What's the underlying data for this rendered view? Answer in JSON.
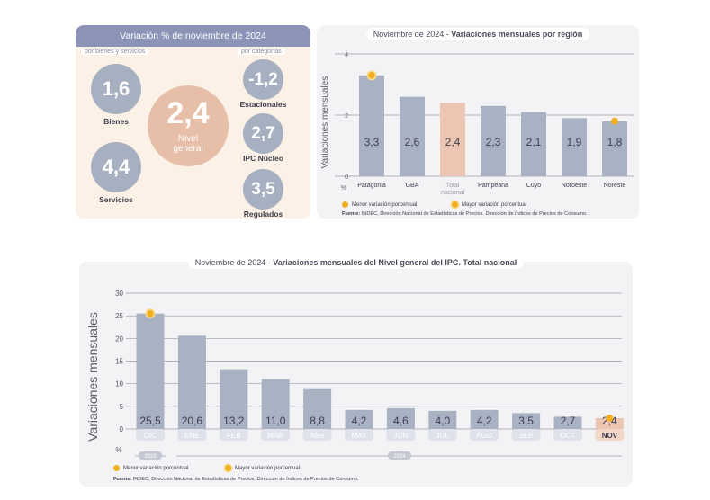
{
  "summary": {
    "title": "Variación % de noviembre de 2024",
    "sub_left": "por bienes y servicios",
    "sub_right": "por categorías",
    "bienes": {
      "value": "1,6",
      "label": "Bienes"
    },
    "servicios": {
      "value": "4,4",
      "label": "Servicios"
    },
    "general": {
      "value": "2,4",
      "label1": "Nivel",
      "label2": "general"
    },
    "estacionales": {
      "value": "-1,2",
      "label": "Estacionales"
    },
    "nucleo": {
      "value": "2,7",
      "label": "IPC Núcleo"
    },
    "regulados": {
      "value": "3,5",
      "label": "Regulados"
    },
    "colors": {
      "circle": "#a7b0c1",
      "general": "#e7bfa8",
      "header": "#8b93b6"
    }
  },
  "legend": {
    "menor": "Menor variación porcentual",
    "mayor": "Mayor variación porcentual"
  },
  "fuente": {
    "bold": "Fuente:",
    "text": " INDEC, Dirección Nacional de Estadísticas de Precios. Dirección de Índices de Precios de Consumo."
  },
  "chart_data": [
    {
      "type": "bar",
      "title_prefix": "Noviembre de 2024 - ",
      "title": "Variaciones mensuales por región",
      "ylabel": "Variaciones mensuales",
      "unit": "%",
      "ylim": [
        0,
        4
      ],
      "yticks": [
        0,
        2,
        4
      ],
      "categories": [
        "Patagonia",
        "GBA",
        "Total nacional",
        "Pampeana",
        "Cuyo",
        "Noroeste",
        "Noreste"
      ],
      "values": [
        3.3,
        2.6,
        2.4,
        2.3,
        2.1,
        1.9,
        1.8
      ],
      "value_labels": [
        "3,3",
        "2,6",
        "2,4",
        "2,3",
        "2,1",
        "1,9",
        "1,8"
      ],
      "highlight_index": 2,
      "max_index": 0,
      "min_index": 6,
      "bar_color": "#a9b2c3",
      "highlight_color": "#ecc6b2"
    },
    {
      "type": "bar",
      "title_prefix": "Noviembre de 2024 - ",
      "title": "Variaciones mensuales del Nivel general del IPC. Total nacional",
      "ylabel": "Variaciones mensuales",
      "unit": "%",
      "ylim": [
        0,
        30
      ],
      "yticks": [
        0,
        5,
        10,
        15,
        20,
        25,
        30
      ],
      "categories": [
        "DIC",
        "ENE",
        "FEB",
        "MAR",
        "ABR",
        "MAY",
        "JUN",
        "JUL",
        "AGO",
        "SEP",
        "OCT",
        "NOV"
      ],
      "values": [
        25.5,
        20.6,
        13.2,
        11.0,
        8.8,
        4.2,
        4.6,
        4.0,
        4.2,
        3.5,
        2.7,
        2.4
      ],
      "value_labels": [
        "25,5",
        "20,6",
        "13,2",
        "11,0",
        "8,8",
        "4,2",
        "4,6",
        "4,0",
        "4,2",
        "3,5",
        "2,7",
        "2,4"
      ],
      "years": [
        "2023",
        "2024"
      ],
      "highlight_index": 11,
      "max_index": 0,
      "min_index": 11,
      "bar_color": "#a9b2c3",
      "highlight_color": "#ecc6b2"
    }
  ]
}
